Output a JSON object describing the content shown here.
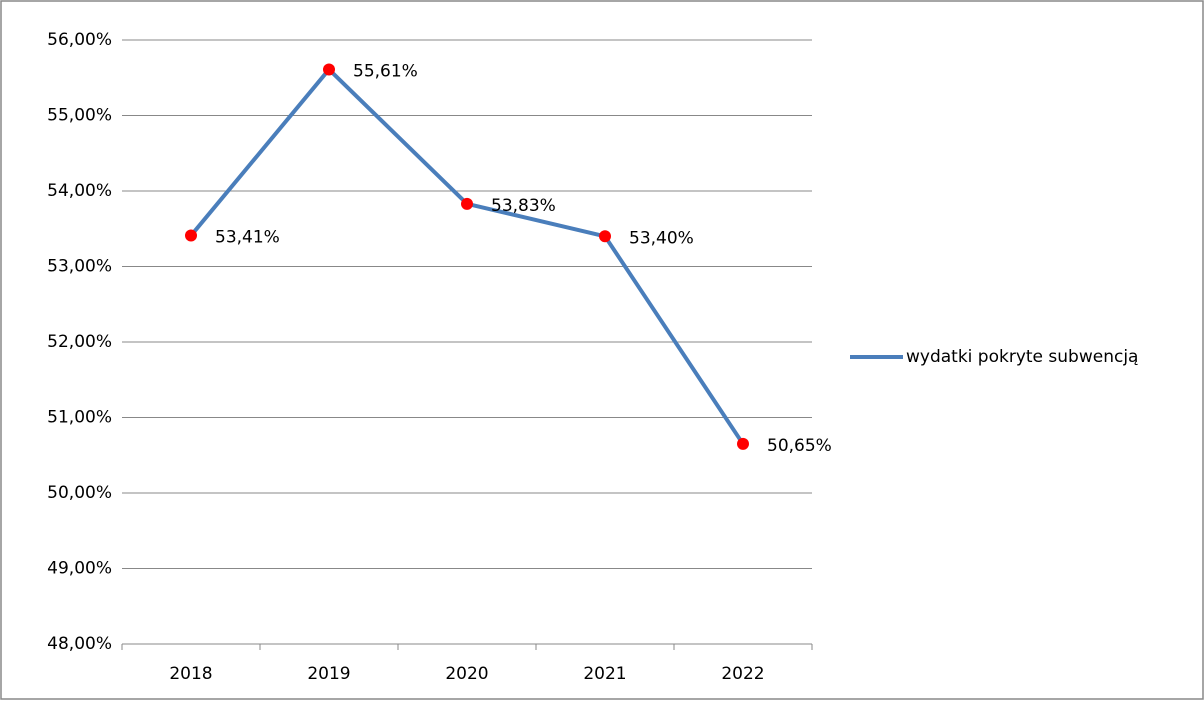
{
  "chart_data": {
    "type": "line",
    "categories": [
      "2018",
      "2019",
      "2020",
      "2021",
      "2022"
    ],
    "series": [
      {
        "name": "wydatki pokryte subwencją",
        "color": "#4a7ebb",
        "marker_color": "#ff0000",
        "values": [
          53.41,
          55.61,
          53.83,
          53.4,
          50.65
        ],
        "value_labels": [
          "53,41%",
          "55,61%",
          "53,83%",
          "53,40%",
          "50,65%"
        ]
      }
    ],
    "ylim": [
      48,
      56
    ],
    "yticks": [
      {
        "value": 48,
        "label": "48,00%"
      },
      {
        "value": 49,
        "label": "49,00%"
      },
      {
        "value": 50,
        "label": "50,00%"
      },
      {
        "value": 51,
        "label": "51,00%"
      },
      {
        "value": 52,
        "label": "52,00%"
      },
      {
        "value": 53,
        "label": "53,00%"
      },
      {
        "value": 54,
        "label": "54,00%"
      },
      {
        "value": 55,
        "label": "55,00%"
      },
      {
        "value": 56,
        "label": "56,00%"
      }
    ],
    "grid": true,
    "legend": "right"
  }
}
